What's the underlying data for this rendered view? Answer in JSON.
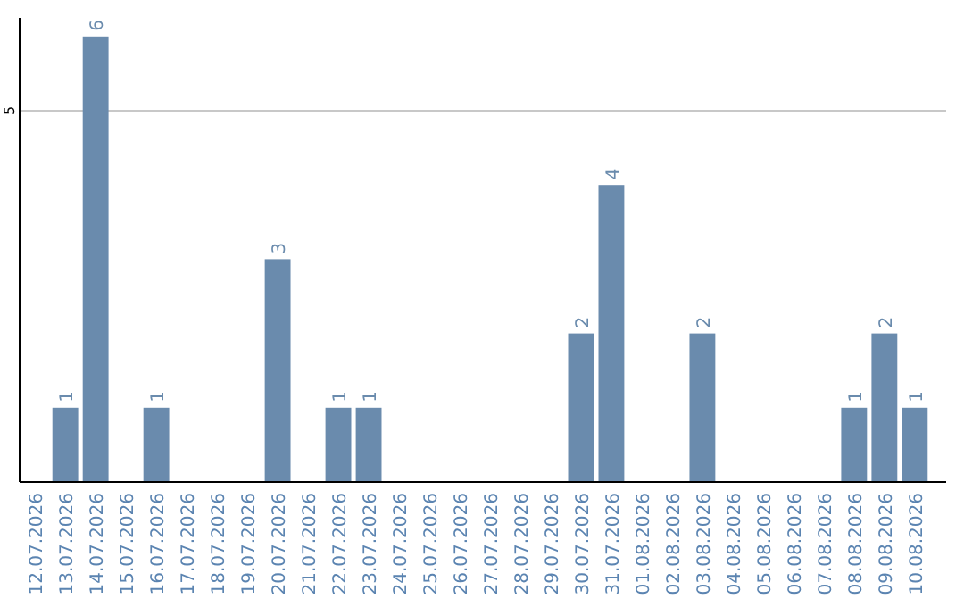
{
  "chart_data": {
    "type": "bar",
    "categories": [
      "12.07.2026",
      "13.07.2026",
      "14.07.2026",
      "15.07.2026",
      "16.07.2026",
      "17.07.2026",
      "18.07.2026",
      "19.07.2026",
      "20.07.2026",
      "21.07.2026",
      "22.07.2026",
      "23.07.2026",
      "24.07.2026",
      "25.07.2026",
      "26.07.2026",
      "27.07.2026",
      "28.07.2026",
      "29.07.2026",
      "30.07.2026",
      "31.07.2026",
      "01.08.2026",
      "02.08.2026",
      "03.08.2026",
      "04.08.2026",
      "05.08.2026",
      "06.08.2026",
      "07.08.2026",
      "08.08.2026",
      "09.08.2026",
      "10.08.2026"
    ],
    "values": [
      0,
      1,
      6,
      0,
      1,
      0,
      0,
      0,
      3,
      0,
      1,
      1,
      0,
      0,
      0,
      0,
      0,
      0,
      2,
      4,
      0,
      0,
      2,
      0,
      0,
      0,
      0,
      1,
      2,
      1
    ],
    "color": "#6a8bad",
    "ylim": [
      0,
      6.25
    ],
    "yticks": [
      5
    ],
    "grid": "y",
    "value_labels": [
      null,
      "1",
      "6",
      null,
      "1",
      null,
      null,
      null,
      "3",
      null,
      "1",
      "1",
      null,
      null,
      null,
      null,
      null,
      null,
      "2",
      "4",
      null,
      null,
      "2",
      null,
      null,
      null,
      null,
      "1",
      "2",
      "1"
    ]
  }
}
